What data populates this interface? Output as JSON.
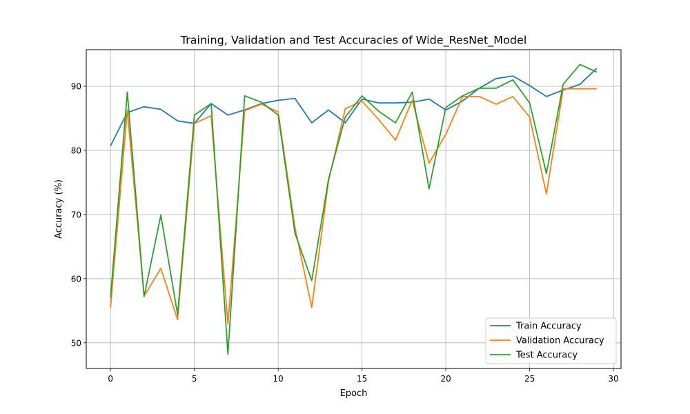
{
  "chart_data": {
    "type": "line",
    "title": "Training, Validation and Test Accuracies of Wide_ResNet_Model",
    "xlabel": "Epoch",
    "ylabel": "Accuracy (%)",
    "xlim": [
      -1.45,
      30.45
    ],
    "ylim": [
      46,
      95.7
    ],
    "xticks": [
      0,
      5,
      10,
      15,
      20,
      25,
      30
    ],
    "yticks": [
      50,
      60,
      70,
      80,
      90
    ],
    "grid": true,
    "legend_position": "bottom-right",
    "x": [
      0,
      1,
      2,
      3,
      4,
      5,
      6,
      7,
      8,
      9,
      10,
      11,
      12,
      13,
      14,
      15,
      16,
      17,
      18,
      19,
      20,
      21,
      22,
      23,
      24,
      25,
      26,
      27,
      28,
      29
    ],
    "series": [
      {
        "name": "Train Accuracy",
        "color": "#1f77b4",
        "values": [
          80.7,
          85.9,
          86.8,
          86.4,
          84.6,
          84.2,
          87.3,
          85.5,
          86.3,
          87.3,
          87.8,
          88.1,
          84.3,
          86.3,
          84.3,
          88.0,
          87.4,
          87.4,
          87.5,
          88.0,
          86.3,
          87.7,
          89.7,
          91.2,
          91.6,
          90.1,
          88.4,
          89.4,
          90.3,
          92.8
        ]
      },
      {
        "name": "Validation Accuracy",
        "color": "#ff7f0e",
        "values": [
          55.5,
          86.3,
          57.3,
          61.6,
          53.6,
          84.2,
          85.4,
          52.9,
          86.2,
          87.2,
          86.0,
          68.0,
          55.5,
          75.2,
          86.5,
          87.7,
          84.8,
          81.6,
          87.8,
          78.0,
          82.5,
          88.4,
          88.4,
          87.2,
          88.4,
          85.2,
          73.2,
          89.6,
          89.6,
          89.6
        ]
      },
      {
        "name": "Test Accuracy",
        "color": "#2ca02c",
        "values": [
          57.1,
          89.1,
          57.2,
          69.9,
          54.4,
          85.5,
          87.3,
          48.2,
          88.5,
          87.5,
          85.5,
          67.1,
          59.7,
          75.5,
          85.2,
          88.5,
          86.1,
          84.3,
          89.1,
          74.0,
          86.7,
          88.5,
          89.7,
          89.7,
          91.0,
          87.4,
          76.4,
          90.3,
          93.4,
          92.2
        ]
      }
    ]
  }
}
